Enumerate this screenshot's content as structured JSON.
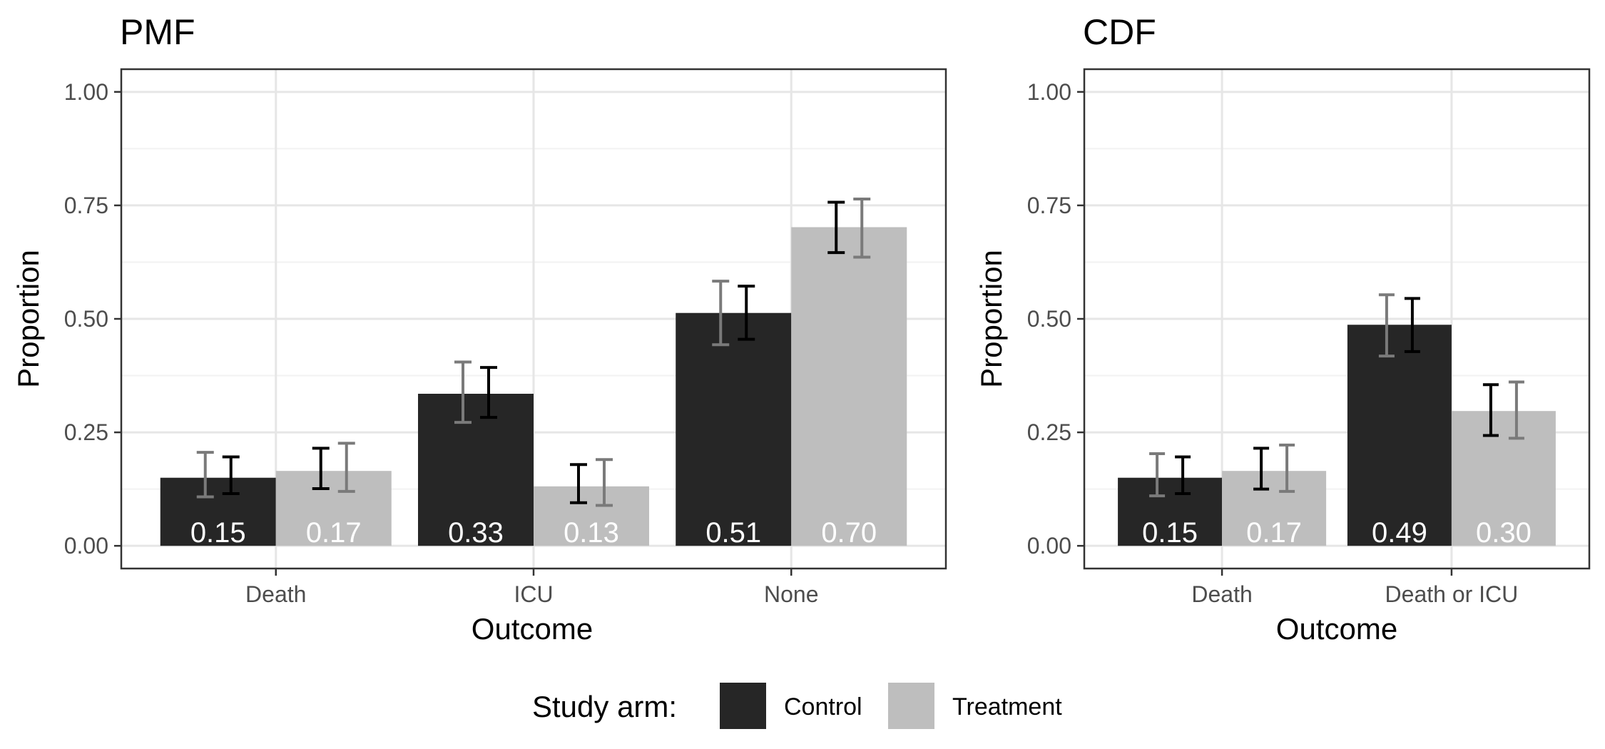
{
  "chart_data": [
    {
      "type": "bar",
      "title": "PMF",
      "xlabel": "Outcome",
      "ylabel": "Proportion",
      "ylim": [
        0,
        1
      ],
      "yticks": [
        "0.00",
        "0.25",
        "0.50",
        "0.75",
        "1.00"
      ],
      "grid": true,
      "categories": [
        "Death",
        "ICU",
        "None"
      ],
      "series": [
        {
          "name": "Control",
          "values": [
            0.15,
            0.335,
            0.513
          ],
          "labels": [
            "0.15",
            "0.33",
            "0.51"
          ],
          "ci_lower": [
            0.115,
            0.283,
            0.455
          ],
          "ci_upper": [
            0.196,
            0.393,
            0.572
          ],
          "ci_color": "#000000"
        },
        {
          "name": "Treatment",
          "values": [
            0.165,
            0.131,
            0.702
          ],
          "labels": [
            "0.17",
            "0.13",
            "0.70"
          ],
          "ci_lower": [
            0.12,
            0.089,
            0.636
          ],
          "ci_upper": [
            0.226,
            0.19,
            0.764
          ],
          "ci_color": "#7a7a7a"
        }
      ],
      "secondary_ci": [
        {
          "series": "Control",
          "ci_lower": [
            0.108,
            0.272,
            0.443
          ],
          "ci_upper": [
            0.206,
            0.405,
            0.583
          ],
          "color": "#7a7a7a"
        },
        {
          "series": "Treatment",
          "ci_lower": [
            0.126,
            0.095,
            0.646
          ],
          "ci_upper": [
            0.215,
            0.179,
            0.757
          ],
          "color": "#000000"
        }
      ]
    },
    {
      "type": "bar",
      "title": "CDF",
      "xlabel": "Outcome",
      "ylabel": "Proportion",
      "ylim": [
        0,
        1
      ],
      "yticks": [
        "0.00",
        "0.25",
        "0.50",
        "0.75",
        "1.00"
      ],
      "grid": true,
      "categories": [
        "Death",
        "Death or ICU"
      ],
      "series": [
        {
          "name": "Control",
          "values": [
            0.15,
            0.487
          ],
          "labels": [
            "0.15",
            "0.49"
          ],
          "ci_lower": [
            0.115,
            0.428
          ],
          "ci_upper": [
            0.196,
            0.545
          ],
          "ci_color": "#000000"
        },
        {
          "name": "Treatment",
          "values": [
            0.165,
            0.297
          ],
          "labels": [
            "0.17",
            "0.30"
          ],
          "ci_lower": [
            0.12,
            0.237
          ],
          "ci_upper": [
            0.222,
            0.361
          ],
          "ci_color": "#7a7a7a"
        }
      ],
      "secondary_ci": [
        {
          "series": "Control",
          "ci_lower": [
            0.11,
            0.418
          ],
          "ci_upper": [
            0.203,
            0.553
          ],
          "color": "#7a7a7a"
        },
        {
          "series": "Treatment",
          "ci_lower": [
            0.125,
            0.243
          ],
          "ci_upper": [
            0.215,
            0.355
          ],
          "color": "#000000"
        }
      ]
    }
  ],
  "legend": {
    "title": "Study arm:",
    "position": "bottom",
    "items": [
      {
        "label": "Control",
        "color": "#262626"
      },
      {
        "label": "Treatment",
        "color": "#bebebe"
      }
    ]
  },
  "colors": {
    "control": "#262626",
    "treatment": "#bebebe",
    "grid_major": "#e6e6e6",
    "grid_minor": "#f2f2f2",
    "panel_border": "#333333"
  }
}
